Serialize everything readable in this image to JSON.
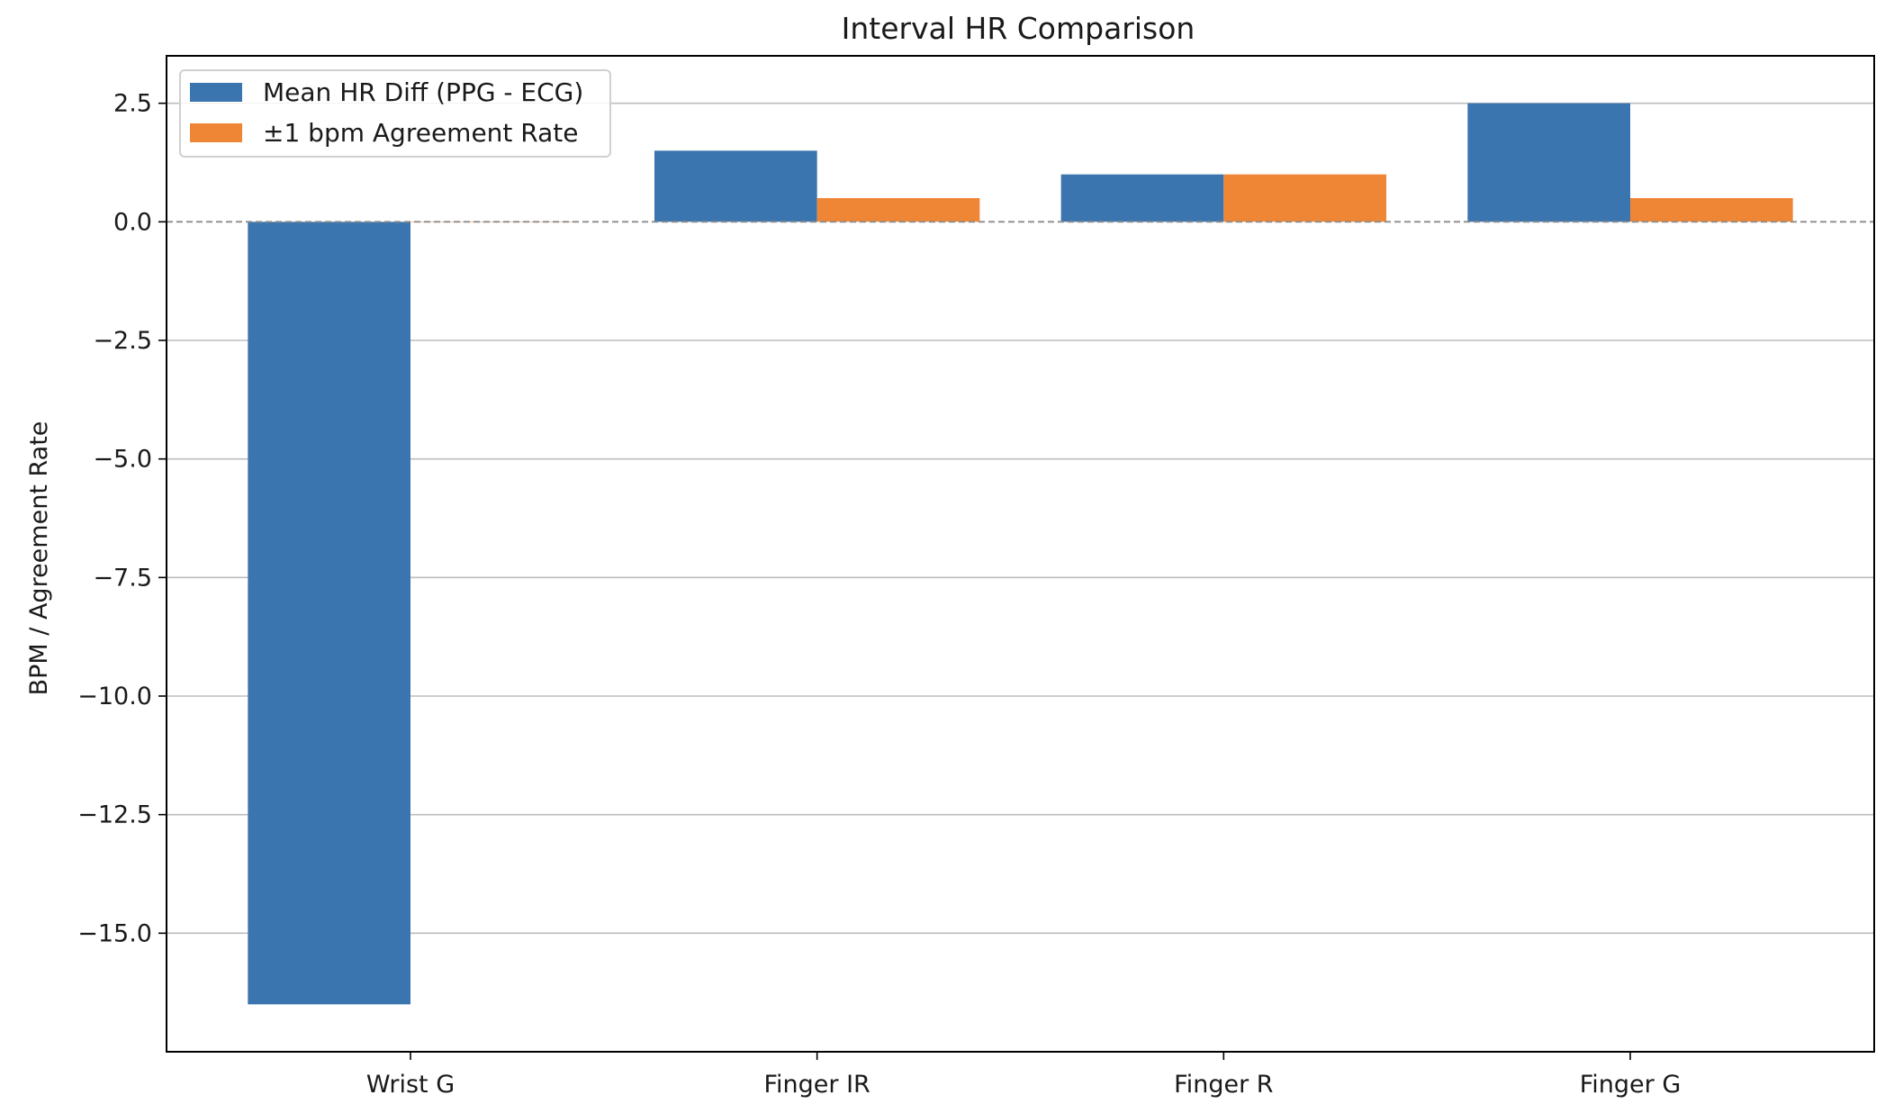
{
  "chart_data": {
    "type": "bar",
    "title": "Interval HR Comparison",
    "xlabel": "",
    "ylabel": "BPM / Agreement Rate",
    "categories": [
      "Wrist G",
      "Finger IR",
      "Finger R",
      "Finger G"
    ],
    "series": [
      {
        "name": "Mean HR Diff (PPG - ECG)",
        "color": "#3b75af",
        "values": [
          -16.5,
          1.5,
          1.0,
          2.5
        ]
      },
      {
        "name": "±1 bpm Agreement Rate",
        "color": "#ef8636",
        "values": [
          0.0,
          0.5,
          1.0,
          0.5
        ]
      }
    ],
    "ylim": [
      -17.5,
      3.5
    ],
    "yticks": [
      2.5,
      0.0,
      -2.5,
      -5.0,
      -7.5,
      -10.0,
      -12.5,
      -15.0
    ],
    "ytick_labels": [
      "2.5",
      "0.0",
      "−2.5",
      "−5.0",
      "−7.5",
      "−10.0",
      "−12.5",
      "−15.0"
    ],
    "grid": "horizontal",
    "zero_line": "dashed",
    "legend_position": "upper-left"
  }
}
